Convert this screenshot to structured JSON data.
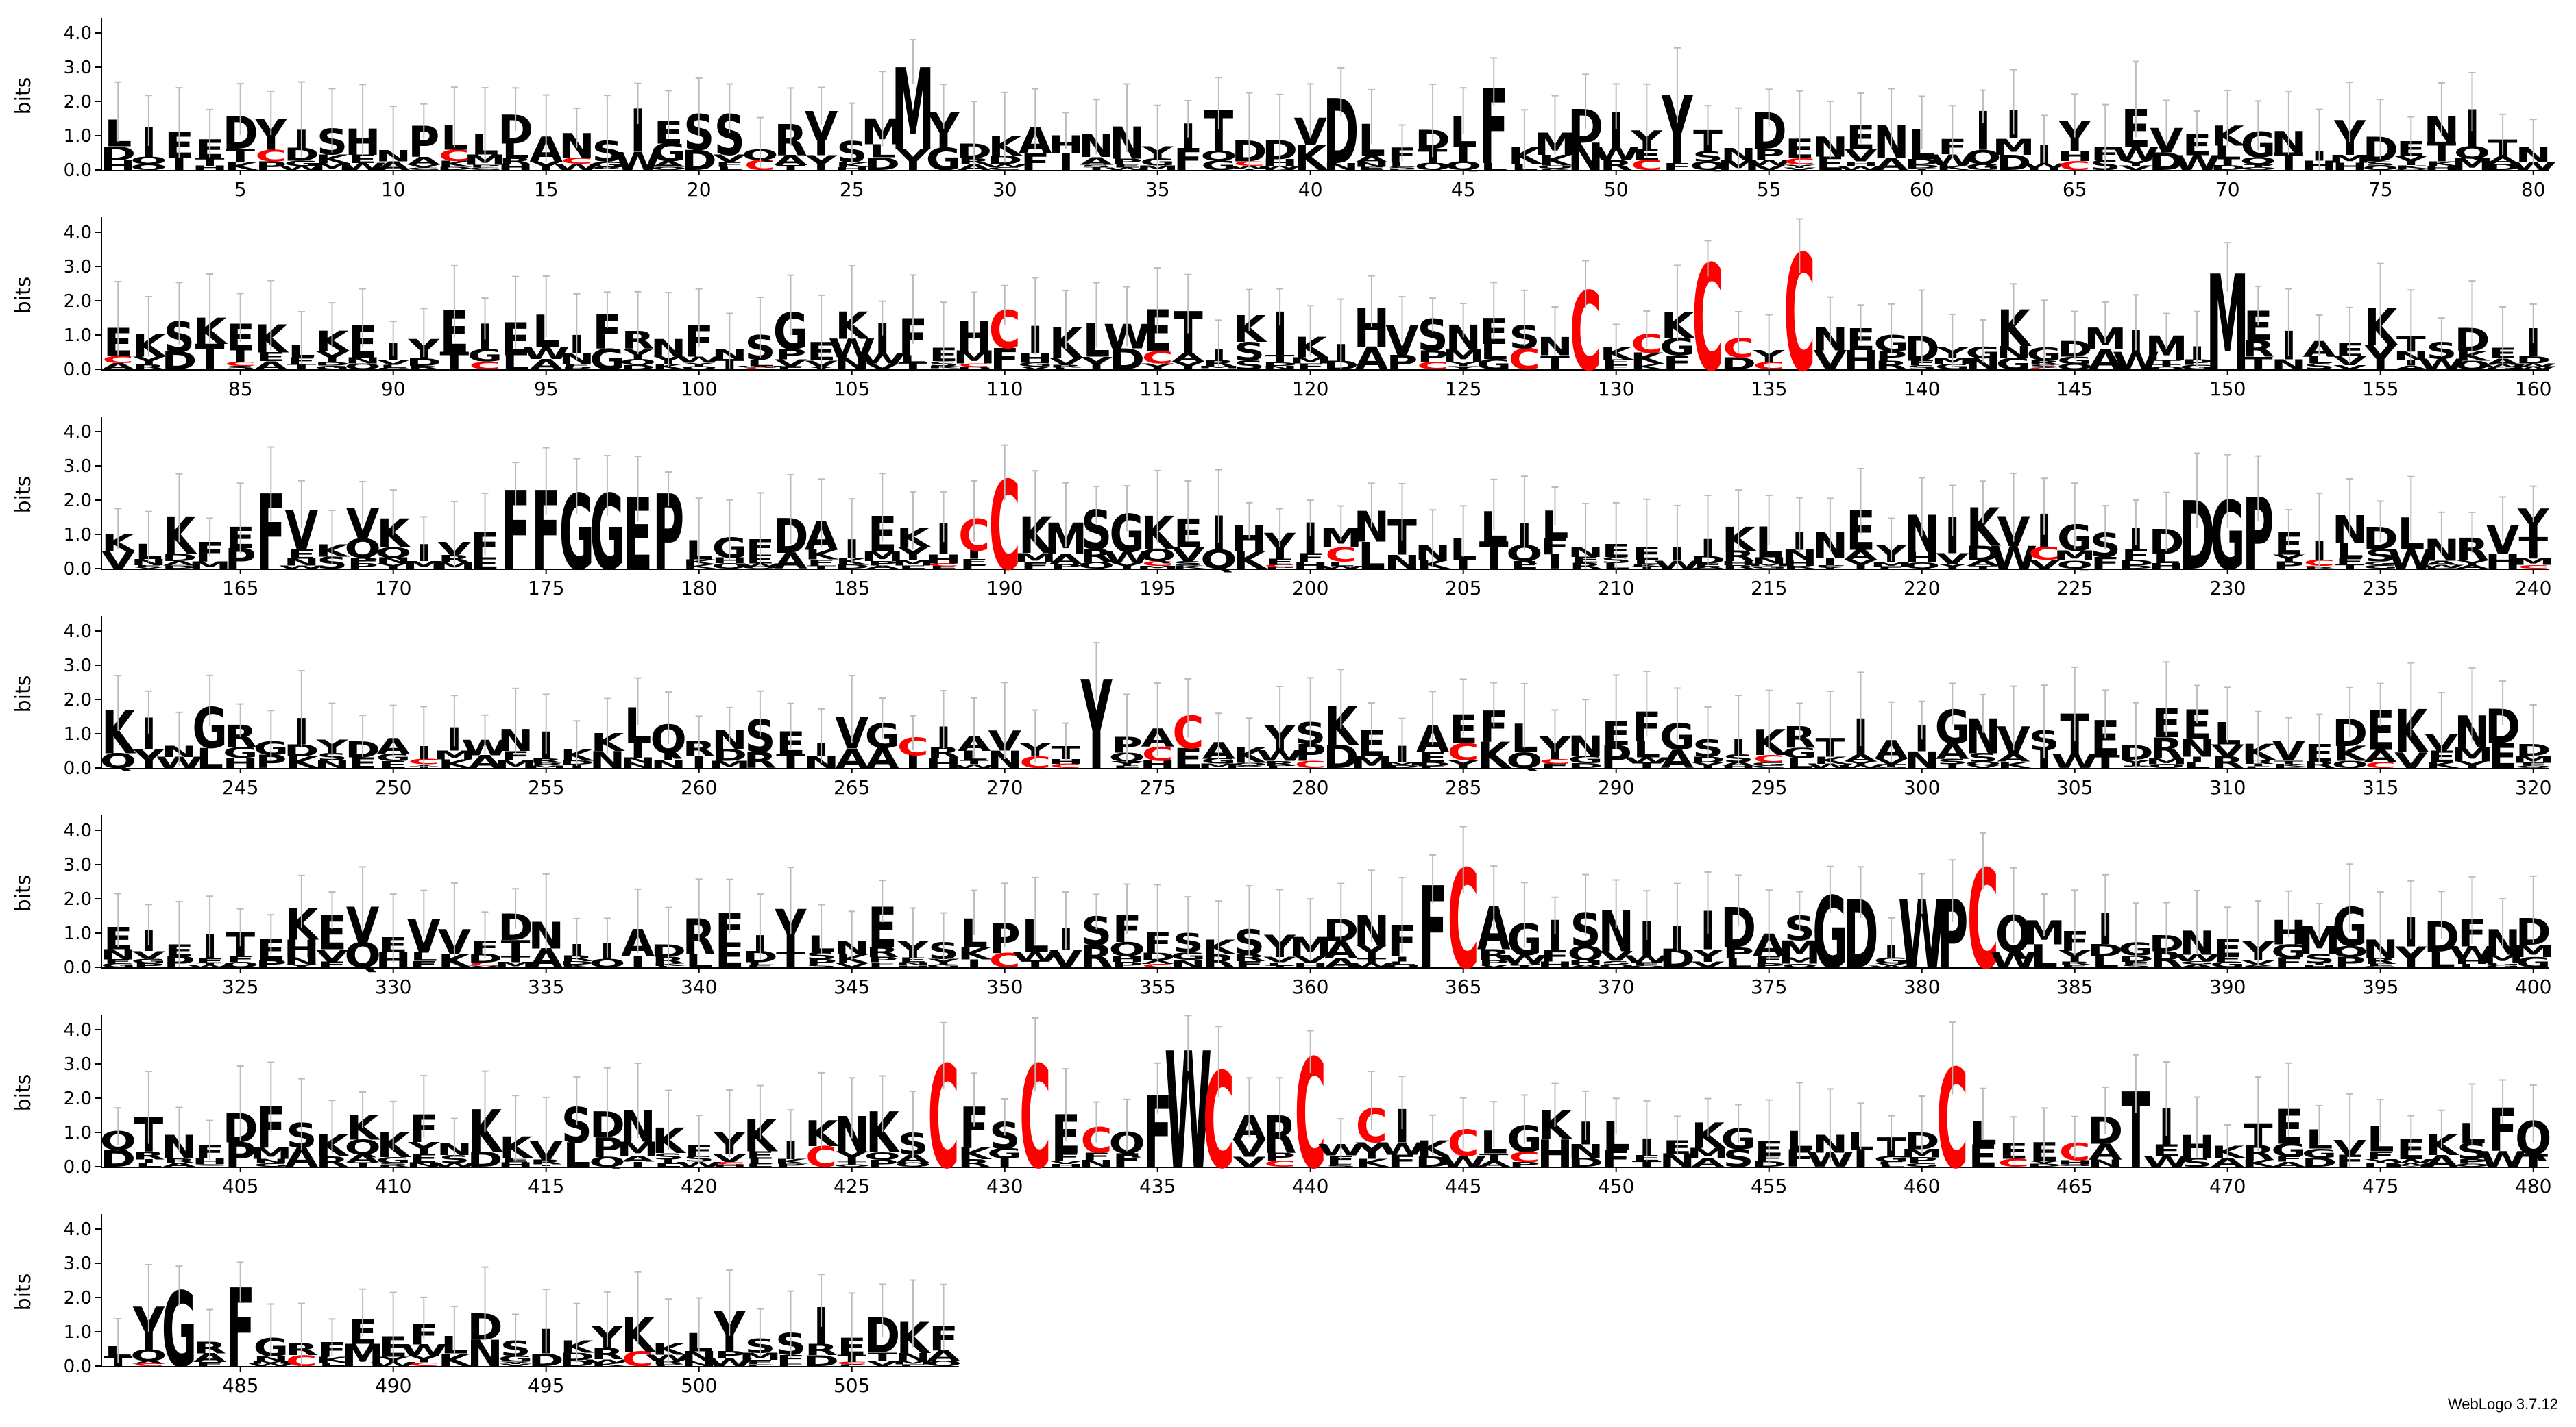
{
  "footer": "WebLogo 3.7.12",
  "chart_data": {
    "type": "sequence-logo",
    "ylabel": "bits",
    "ylim": [
      0,
      4.32
    ],
    "yticks": [
      "0.0",
      "1.0",
      "2.0",
      "3.0",
      "4.0"
    ],
    "positions_per_row": 80,
    "total_positions": 508,
    "xticks_every": 5,
    "colors": {
      "default": "#000000",
      "cysteine": "#ff0000",
      "errorbar": "#bbbbbb"
    },
    "consensus": "LIEEDYISHNPLLDANSIESSQRVSMYYDKAINNYITDDKKLFDLWKMDIYFTNDENENLFIIIYFEVEKGNIYDENITNEKSTEKLKEIYEIELIFRNFNSGEKIFEHCIKLDETIKIKIHVSNECNLKCKYCYANHGDYGKGDAIMIEEIAEKTSDEIKLKFPKVSVKIVFFGGEPLLGFDAIEKICEKMSGKEIHYIMNTNLTILNEEIIKLINEYNIKVIGSIDGPKEINDLNRVYKINGRGIYDAIIANIKKLQRNSEIVGCIAVYTKPACAKYSKEIAEFLYNEFGSIKRTIAIGNVITEDEELKVEDEKVNDDEIEITEKEVEVVFDNIIADRFIYLNEYSLPLISFFSKSYMDNFCIAGISNIIIDASGDIWPCQLFIGRNEYHMGNIDFNDDTNFDFSKKKFNKKVSDNKFYKIKNKSRFSFECQKCIARFWCIKCLGKILIEKGELNITDKEEECDKIHKTELVLEKLFQTYMRNGRFEEFLNSIKYKKLYSSIEDKFLEVI",
    "columns": [
      {
        "position": 27,
        "letters": [
          {
            "aa": "M",
            "bits": 2.4
          },
          {
            "aa": "Y",
            "bits": 0.6
          }
        ]
      },
      {
        "position": 41,
        "letters": [
          {
            "aa": "D",
            "bits": 1.9
          },
          {
            "aa": "N",
            "bits": 0.2
          }
        ]
      },
      {
        "position": 46,
        "letters": [
          {
            "aa": "F",
            "bits": 2.2
          },
          {
            "aa": "L",
            "bits": 0.2
          }
        ]
      },
      {
        "position": 52,
        "letters": [
          {
            "aa": "Y",
            "bits": 2.0
          },
          {
            "aa": "F",
            "bits": 0.2
          }
        ]
      },
      {
        "position": 129,
        "letters": [
          {
            "aa": "C",
            "bits": 2.3
          }
        ]
      },
      {
        "position": 133,
        "letters": [
          {
            "aa": "C",
            "bits": 3.1
          }
        ]
      },
      {
        "position": 136,
        "letters": [
          {
            "aa": "C",
            "bits": 3.4
          }
        ]
      },
      {
        "position": 150,
        "letters": [
          {
            "aa": "M",
            "bits": 2.8
          }
        ]
      },
      {
        "position": 166,
        "letters": [
          {
            "aa": "F",
            "bits": 2.2
          }
        ]
      },
      {
        "position": 174,
        "letters": [
          {
            "aa": "F",
            "bits": 2.3
          }
        ]
      },
      {
        "position": 175,
        "letters": [
          {
            "aa": "F",
            "bits": 2.3
          }
        ]
      },
      {
        "position": 176,
        "letters": [
          {
            "aa": "G",
            "bits": 2.2
          }
        ]
      },
      {
        "position": 177,
        "letters": [
          {
            "aa": "G",
            "bits": 2.2
          }
        ]
      },
      {
        "position": 178,
        "letters": [
          {
            "aa": "E",
            "bits": 2.1
          }
        ]
      },
      {
        "position": 179,
        "letters": [
          {
            "aa": "P",
            "bits": 2.2
          }
        ]
      },
      {
        "position": 190,
        "letters": [
          {
            "aa": "C",
            "bits": 2.6
          }
        ]
      },
      {
        "position": 229,
        "letters": [
          {
            "aa": "D",
            "bits": 2.0
          }
        ]
      },
      {
        "position": 230,
        "letters": [
          {
            "aa": "G",
            "bits": 2.0
          }
        ]
      },
      {
        "position": 231,
        "letters": [
          {
            "aa": "P",
            "bits": 2.1
          }
        ]
      },
      {
        "position": 273,
        "letters": [
          {
            "aa": "Y",
            "bits": 2.6
          }
        ]
      },
      {
        "position": 364,
        "letters": [
          {
            "aa": "F",
            "bits": 2.4
          }
        ]
      },
      {
        "position": 365,
        "letters": [
          {
            "aa": "C",
            "bits": 2.9
          }
        ]
      },
      {
        "position": 377,
        "letters": [
          {
            "aa": "G",
            "bits": 2.1
          }
        ]
      },
      {
        "position": 378,
        "letters": [
          {
            "aa": "D",
            "bits": 2.0
          }
        ]
      },
      {
        "position": 380,
        "letters": [
          {
            "aa": "W",
            "bits": 2.0
          }
        ]
      },
      {
        "position": 381,
        "letters": [
          {
            "aa": "P",
            "bits": 2.0
          }
        ]
      },
      {
        "position": 382,
        "letters": [
          {
            "aa": "C",
            "bits": 2.9
          }
        ]
      },
      {
        "position": 428,
        "letters": [
          {
            "aa": "C",
            "bits": 3.0
          }
        ]
      },
      {
        "position": 431,
        "letters": [
          {
            "aa": "C",
            "bits": 3.0
          }
        ]
      },
      {
        "position": 435,
        "letters": [
          {
            "aa": "F",
            "bits": 2.1
          }
        ]
      },
      {
        "position": 436,
        "letters": [
          {
            "aa": "W",
            "bits": 3.4
          }
        ]
      },
      {
        "position": 437,
        "letters": [
          {
            "aa": "C",
            "bits": 2.8
          }
        ]
      },
      {
        "position": 440,
        "letters": [
          {
            "aa": "C",
            "bits": 3.2
          }
        ]
      },
      {
        "position": 461,
        "letters": [
          {
            "aa": "C",
            "bits": 2.9
          }
        ]
      },
      {
        "position": 467,
        "letters": [
          {
            "aa": "T",
            "bits": 2.2
          }
        ]
      },
      {
        "position": 483,
        "letters": [
          {
            "aa": "G",
            "bits": 2.2
          }
        ]
      },
      {
        "position": 485,
        "letters": [
          {
            "aa": "F",
            "bits": 2.3
          }
        ]
      }
    ]
  }
}
